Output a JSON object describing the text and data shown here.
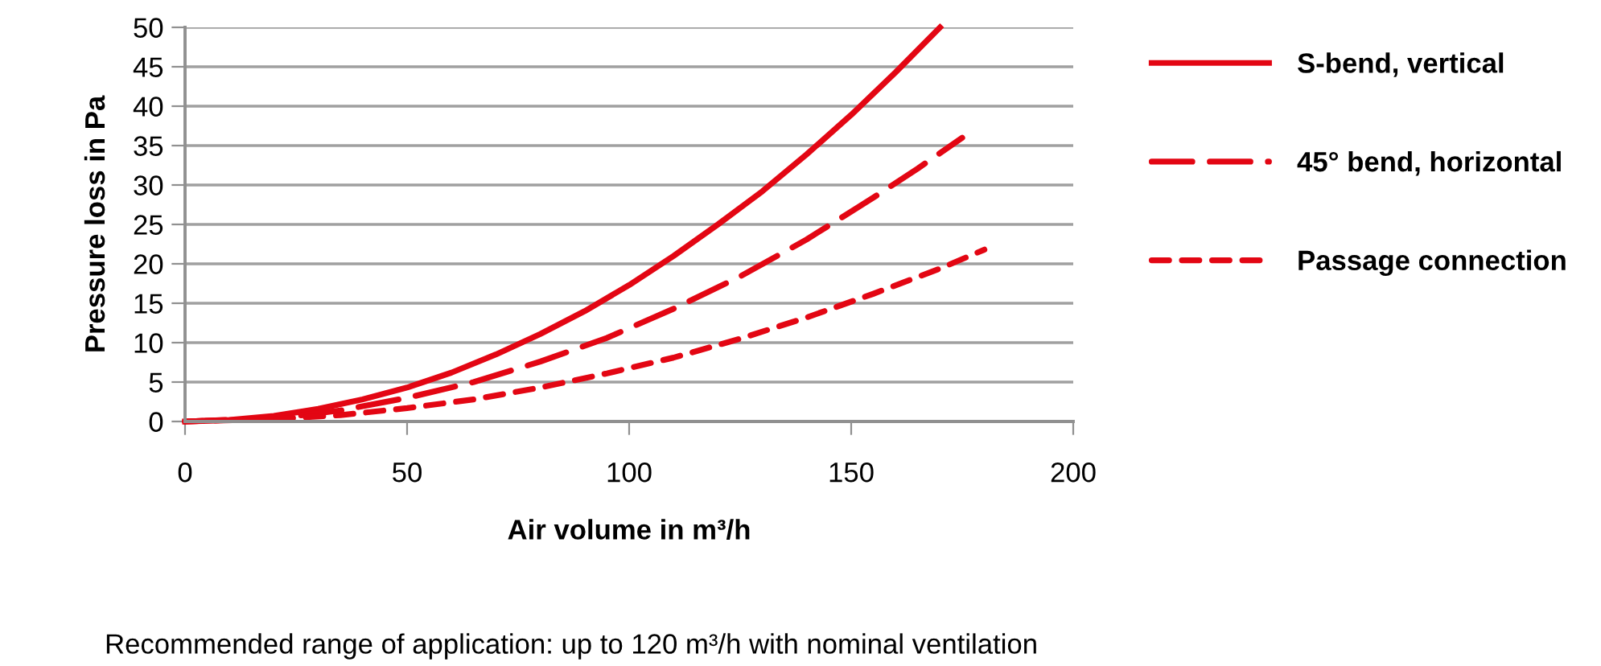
{
  "chart_data": {
    "type": "line",
    "xlabel": "Air volume in m³/h",
    "ylabel": "Pressure loss in Pa",
    "annotations": [
      "Recommended range of application: up to 120 m³/h with nominal ventilation"
    ],
    "x": [
      0,
      10,
      20,
      30,
      40,
      50,
      60,
      70,
      80,
      90,
      100,
      110,
      120,
      130,
      140,
      150,
      160,
      170
    ],
    "series": [
      {
        "name": "S-bend, vertical",
        "color": "#e30613",
        "line_style": "solid",
        "values": [
          0,
          0.2,
          0.7,
          1.6,
          2.8,
          4.3,
          6.2,
          8.5,
          11.1,
          14,
          17.3,
          21,
          25,
          29.2,
          33.9,
          38.9,
          44.3,
          50
        ]
      },
      {
        "name": "45° bend, horizontal",
        "color": "#e30613",
        "line_style": "dashed",
        "x": [
          0,
          15,
          25,
          35,
          50,
          65,
          80,
          95,
          110,
          125,
          140,
          155,
          165,
          175
        ],
        "values": [
          0,
          0.3,
          0.7,
          1.4,
          3,
          5,
          7.6,
          10.6,
          14.3,
          18.4,
          23.1,
          28.4,
          32.1,
          36
        ]
      },
      {
        "name": "Passage connection",
        "color": "#e30613",
        "line_style": "dotted",
        "x": [
          0,
          20,
          35,
          50,
          65,
          80,
          95,
          110,
          125,
          140,
          155,
          170,
          180
        ],
        "values": [
          0,
          0.3,
          0.8,
          1.7,
          2.8,
          4.3,
          6.1,
          8.1,
          10.5,
          13.2,
          16.2,
          19.4,
          21.8
        ]
      }
    ],
    "xlim": [
      0,
      200
    ],
    "xticks": [
      0,
      50,
      100,
      150,
      200
    ],
    "ylim": [
      0,
      50
    ],
    "yticks": [
      0,
      5,
      10,
      15,
      20,
      25,
      30,
      35,
      40,
      45,
      50
    ],
    "grid": "y",
    "legend": "right",
    "marker": "none"
  }
}
